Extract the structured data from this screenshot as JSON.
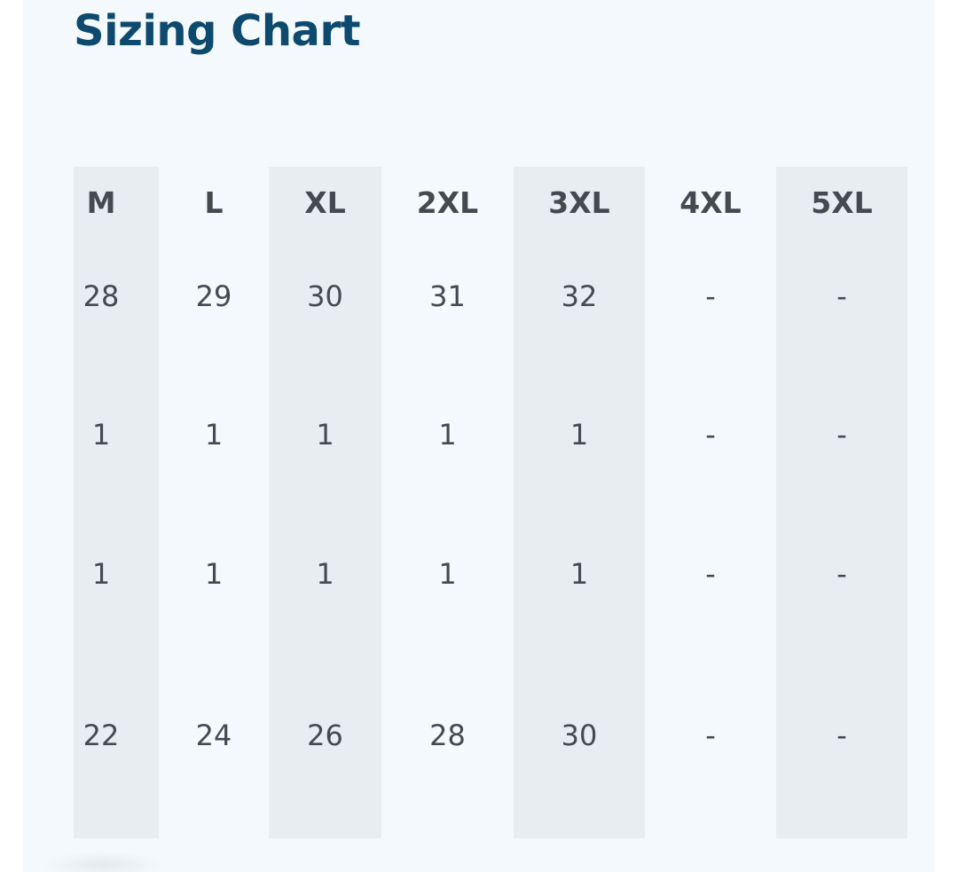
{
  "page": {
    "title": "Sizing Chart"
  },
  "sizing_table": {
    "columns": [
      {
        "size": "M",
        "values": [
          "28",
          "1",
          "1",
          "22"
        ]
      },
      {
        "size": "L",
        "values": [
          "29",
          "1",
          "1",
          "24"
        ]
      },
      {
        "size": "XL",
        "values": [
          "30",
          "1",
          "1",
          "26"
        ]
      },
      {
        "size": "2XL",
        "values": [
          "31",
          "1",
          "1",
          "28"
        ]
      },
      {
        "size": "3XL",
        "values": [
          "32",
          "1",
          "1",
          "30"
        ]
      },
      {
        "size": "4XL",
        "values": [
          "-",
          "-",
          "-",
          "-"
        ]
      },
      {
        "size": "5XL",
        "values": [
          "-",
          "-",
          "-",
          "-"
        ]
      }
    ]
  },
  "colors": {
    "title": "#0d4a6e",
    "card_background": "#f4f9fd",
    "shaded_column": "#e8edf1",
    "cell_text": "#444a50"
  }
}
